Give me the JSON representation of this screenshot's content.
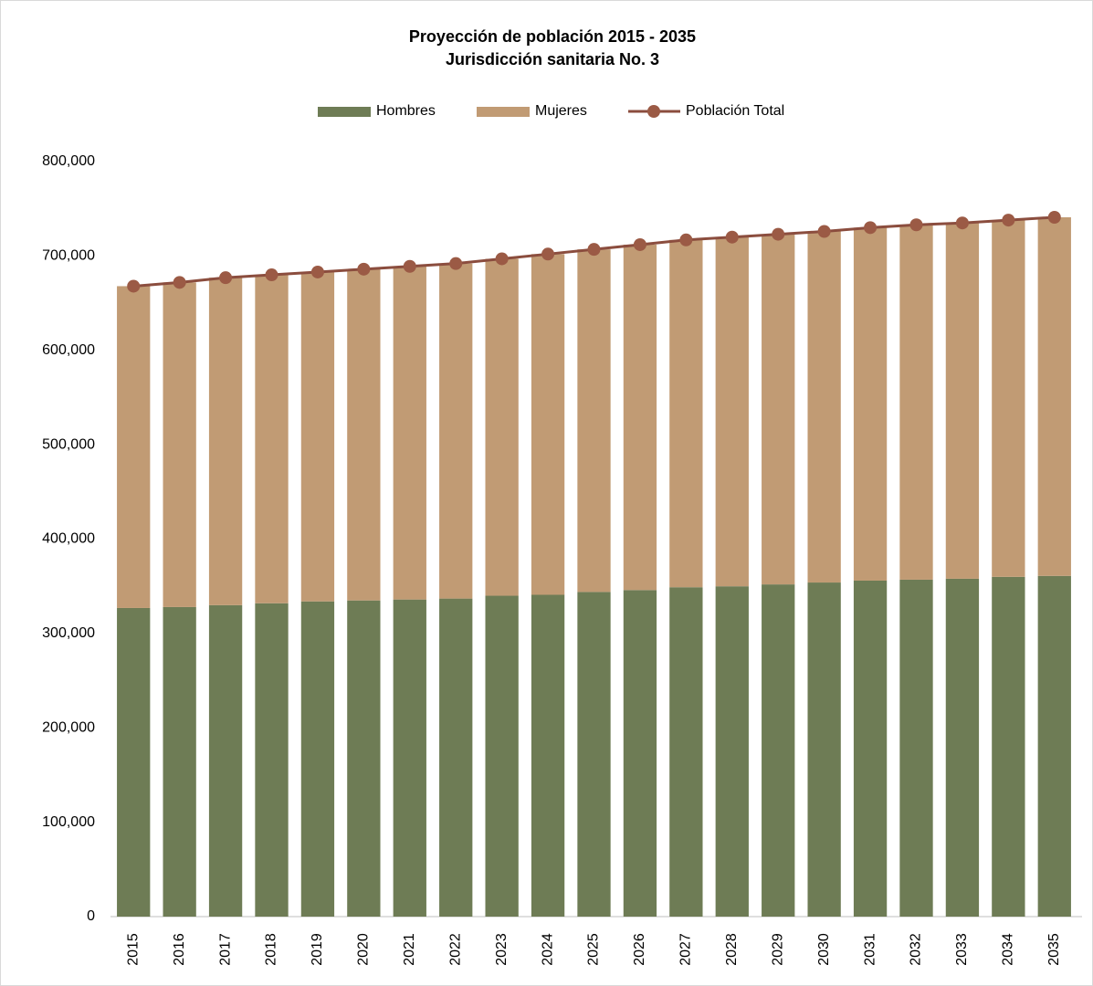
{
  "chart_data": {
    "type": "stacked-bar-line",
    "title": "Proyección de población 2015 - 2035",
    "subtitle": "Jurisdicción sanitaria No. 3",
    "categories": [
      "2015",
      "2016",
      "2017",
      "2018",
      "2019",
      "2020",
      "2021",
      "2022",
      "2023",
      "2024",
      "2025",
      "2026",
      "2027",
      "2028",
      "2029",
      "2030",
      "2031",
      "2032",
      "2033",
      "2034",
      "2035"
    ],
    "series": [
      {
        "name": "Hombres",
        "color": "#6e7c55",
        "kind": "bar",
        "values": [
          327000,
          328000,
          330000,
          332000,
          334000,
          335000,
          336000,
          337000,
          340000,
          341000,
          344000,
          346000,
          349000,
          350000,
          352000,
          354000,
          356000,
          357000,
          358000,
          360000,
          361000
        ]
      },
      {
        "name": "Mujeres",
        "color": "#c19b74",
        "kind": "bar",
        "values": [
          341000,
          344000,
          347000,
          348000,
          349000,
          351000,
          353000,
          355000,
          357000,
          361000,
          363000,
          366000,
          368000,
          370000,
          371000,
          372000,
          374000,
          376000,
          377000,
          378000,
          380000
        ]
      },
      {
        "name": "Población Total",
        "color": "#8b4d3e",
        "kind": "line",
        "values": [
          668000,
          672000,
          677000,
          680000,
          683000,
          686000,
          689000,
          692000,
          697000,
          702000,
          707000,
          712000,
          717000,
          720000,
          723000,
          726000,
          730000,
          733000,
          735000,
          738000,
          741000
        ]
      }
    ],
    "ylim": [
      0,
      800000
    ],
    "yticks": [
      0,
      {
        "value": 100000,
        "label": "100,000"
      },
      {
        "value": 200000,
        "label": "200,000"
      },
      {
        "value": 300000,
        "label": "300,000"
      },
      {
        "value": 400000,
        "label": "400,000"
      },
      {
        "value": 500000,
        "label": "500,000"
      },
      {
        "value": 600000,
        "label": "600,000"
      },
      {
        "value": 700000,
        "label": "700,000"
      },
      {
        "value": 800000,
        "label": "800,000"
      }
    ],
    "grid": false
  }
}
